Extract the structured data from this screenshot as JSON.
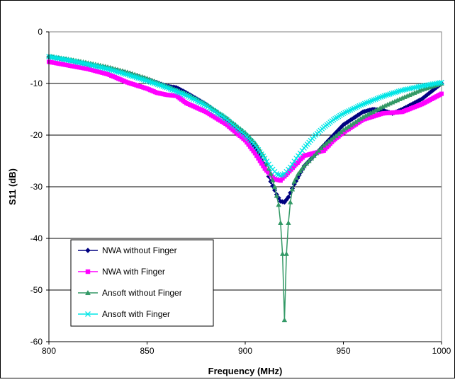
{
  "chart_data": {
    "type": "line",
    "title": "",
    "xlabel": "Frequency (MHz)",
    "ylabel": "S11 (dB)",
    "xlim": [
      800,
      1000
    ],
    "ylim": [
      -60,
      0
    ],
    "xticks": [
      800,
      850,
      900,
      950,
      1000
    ],
    "yticks": [
      0,
      -10,
      -20,
      -30,
      -40,
      -50,
      -60
    ],
    "grid": "horizontal",
    "legend_position": "bottom-left",
    "series": [
      {
        "name": "NWA without Finger",
        "color": "#000080",
        "marker": "diamond",
        "x": [
          800,
          810,
          820,
          830,
          840,
          850,
          860,
          865,
          870,
          880,
          890,
          900,
          905,
          910,
          913,
          916,
          918,
          920,
          922,
          925,
          930,
          935,
          940,
          945,
          950,
          960,
          965,
          970,
          975,
          980,
          990,
          1000
        ],
        "y": [
          -4.8,
          -5.5,
          -6.3,
          -7.0,
          -8.0,
          -9.2,
          -10.5,
          -10.8,
          -11.8,
          -14.0,
          -16.8,
          -20.0,
          -22.5,
          -26.0,
          -29.0,
          -31.5,
          -32.8,
          -33.0,
          -32.0,
          -29.5,
          -26.0,
          -24.0,
          -22.0,
          -20.0,
          -18.0,
          -15.5,
          -15.0,
          -15.2,
          -15.8,
          -15.0,
          -13.0,
          -10.0
        ]
      },
      {
        "name": "NWA with Finger",
        "color": "#ff00ff",
        "marker": "square",
        "x": [
          800,
          810,
          820,
          830,
          840,
          850,
          855,
          860,
          865,
          870,
          880,
          890,
          900,
          905,
          910,
          915,
          918,
          920,
          925,
          930,
          935,
          940,
          945,
          950,
          960,
          970,
          980,
          990,
          995,
          1000
        ],
        "y": [
          -5.8,
          -6.5,
          -7.2,
          -8.2,
          -9.8,
          -11.0,
          -11.8,
          -12.2,
          -12.4,
          -13.8,
          -15.5,
          -17.8,
          -21.0,
          -23.5,
          -26.5,
          -28.5,
          -28.8,
          -28.0,
          -26.0,
          -24.0,
          -23.5,
          -23.0,
          -21.0,
          -19.5,
          -17.0,
          -15.8,
          -15.5,
          -14.0,
          -13.0,
          -12.0
        ]
      },
      {
        "name": "Ansoft without Finger",
        "color": "#339966",
        "marker": "triangle",
        "x": [
          800,
          810,
          820,
          830,
          840,
          850,
          860,
          870,
          880,
          890,
          900,
          905,
          910,
          913,
          915,
          917,
          918,
          919,
          920,
          921,
          922,
          923,
          924,
          925,
          927,
          930,
          935,
          940,
          950,
          960,
          970,
          980,
          990,
          1000
        ],
        "y": [
          -4.7,
          -5.3,
          -6.0,
          -6.8,
          -7.8,
          -9.0,
          -10.5,
          -12.0,
          -14.0,
          -16.5,
          -19.5,
          -21.5,
          -24.5,
          -27.5,
          -30.0,
          -33.5,
          -37.0,
          -43.0,
          -55.8,
          -43.0,
          -37.0,
          -33.0,
          -30.5,
          -29.0,
          -27.5,
          -26.0,
          -24.0,
          -22.0,
          -19.0,
          -16.5,
          -14.5,
          -12.8,
          -11.2,
          -10.0
        ]
      },
      {
        "name": "Ansoft with Finger",
        "color": "#00e5e5",
        "marker": "x",
        "x": [
          800,
          810,
          820,
          830,
          840,
          850,
          860,
          870,
          880,
          890,
          900,
          905,
          910,
          913,
          916,
          918,
          920,
          923,
          926,
          930,
          935,
          940,
          945,
          950,
          960,
          970,
          980,
          990,
          1000
        ],
        "y": [
          -4.8,
          -5.5,
          -6.3,
          -7.2,
          -8.3,
          -9.5,
          -10.8,
          -12.3,
          -14.3,
          -16.8,
          -20.0,
          -22.0,
          -24.5,
          -26.2,
          -27.5,
          -27.8,
          -27.5,
          -26.2,
          -24.5,
          -22.5,
          -20.3,
          -18.5,
          -17.0,
          -15.8,
          -14.0,
          -12.5,
          -11.3,
          -10.5,
          -9.8
        ]
      }
    ]
  }
}
